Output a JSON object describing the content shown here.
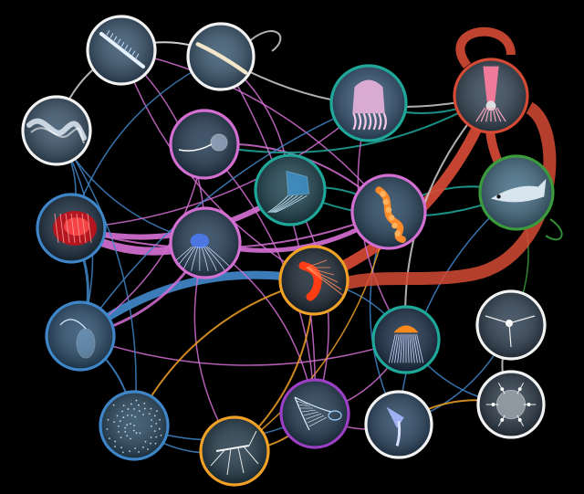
{
  "colors": {
    "background": "#000000",
    "white": "#f2f2f2",
    "blue": "#3f86c8",
    "pink": "#d46fd2",
    "teal": "#1fa79a",
    "orange": "#f0a126",
    "red": "#d54a35",
    "green": "#3a9a3c",
    "purple": "#9b3fc4",
    "grey": "#cfcfcf"
  },
  "nodes": [
    {
      "id": "arrow-worm",
      "ring": "white",
      "subject": "arrow-worm",
      "tone": "#2c4a66"
    },
    {
      "id": "larval-fish",
      "ring": "white",
      "subject": "larval-fish",
      "tone": "#2f4f6a"
    },
    {
      "id": "siphonophore-colony",
      "ring": "white",
      "subject": "siphonophore-colony",
      "tone": "#2e4a62"
    },
    {
      "id": "red-comb-jelly",
      "ring": "blue",
      "subject": "red-comb-jelly",
      "tone": "#102438"
    },
    {
      "id": "transparent-ctenophore",
      "ring": "blue",
      "subject": "transparent-ctenophore",
      "tone": "#1e4466"
    },
    {
      "id": "plankton-specks",
      "ring": "blue",
      "subject": "plankton-specks",
      "tone": "#1c3e58"
    },
    {
      "id": "trailing-hydromedusa",
      "ring": "pink",
      "subject": "trailing-hydromedusa",
      "tone": "#18304a"
    },
    {
      "id": "small-hydromedusa",
      "ring": "pink",
      "subject": "small-hydromedusa",
      "tone": "#1b3550"
    },
    {
      "id": "box-jellyfish",
      "ring": "teal",
      "subject": "box-jellyfish",
      "tone": "#123a48"
    },
    {
      "id": "pink-jellyfish",
      "ring": "teal",
      "subject": "pink-jellyfish",
      "tone": "#2a4d70"
    },
    {
      "id": "orange-siphonophore",
      "ring": "pink",
      "subject": "orange-siphonophore",
      "tone": "#1d3d5a"
    },
    {
      "id": "red-squid",
      "ring": "red",
      "subject": "red-squid",
      "tone": "#2a3c4e"
    },
    {
      "id": "silver-fish",
      "ring": "green",
      "subject": "silver-fish",
      "tone": "#3a6680"
    },
    {
      "id": "red-shrimp",
      "ring": "orange",
      "subject": "red-shrimp",
      "tone": "#0f1d2b"
    },
    {
      "id": "lace-medusa",
      "ring": "teal",
      "subject": "lace-medusa",
      "tone": "#0e2440"
    },
    {
      "id": "tentacled-larva",
      "ring": "white",
      "subject": "tentacled-larva",
      "tone": "#24364a"
    },
    {
      "id": "spider-amphipod",
      "ring": "orange",
      "subject": "spider-amphipod",
      "tone": "#163040"
    },
    {
      "id": "net-siphonophore",
      "ring": "purple",
      "subject": "net-siphonophore",
      "tone": "#16304a"
    },
    {
      "id": "sea-angel",
      "ring": "white",
      "subject": "sea-angel",
      "tone": "#1f3d5c"
    },
    {
      "id": "radiolarian",
      "ring": "white",
      "subject": "radiolarian",
      "tone": "#203040"
    }
  ],
  "edges": [
    {
      "from": "arrow-worm",
      "to": "larval-fish",
      "color": "white",
      "weight": 2
    },
    {
      "from": "arrow-worm",
      "to": "siphonophore-colony",
      "color": "grey",
      "weight": 2
    },
    {
      "from": "arrow-worm",
      "to": "small-hydromedusa",
      "color": "pink",
      "weight": 1.5
    },
    {
      "from": "arrow-worm",
      "to": "red-shrimp",
      "color": "pink",
      "weight": 1.5
    },
    {
      "from": "arrow-worm",
      "to": "orange-siphonophore",
      "color": "pink",
      "weight": 1.5
    },
    {
      "from": "larval-fish",
      "to": "red-squid",
      "color": "grey",
      "weight": 2
    },
    {
      "from": "larval-fish",
      "to": "box-jellyfish",
      "color": "pink",
      "weight": 1.5
    },
    {
      "from": "larval-fish",
      "to": "red-comb-jelly",
      "color": "blue",
      "weight": 1.5
    },
    {
      "from": "siphonophore-colony",
      "to": "red-comb-jelly",
      "color": "blue",
      "weight": 1.5
    },
    {
      "from": "siphonophore-colony",
      "to": "small-hydromedusa",
      "color": "blue",
      "weight": 1.5
    },
    {
      "from": "siphonophore-colony",
      "to": "transparent-ctenophore",
      "color": "blue",
      "weight": 1.5
    },
    {
      "from": "red-comb-jelly",
      "to": "small-hydromedusa",
      "color": "pink",
      "weight": 9
    },
    {
      "from": "red-comb-jelly",
      "to": "transparent-ctenophore",
      "color": "blue",
      "weight": 3
    },
    {
      "from": "red-comb-jelly",
      "to": "box-jellyfish",
      "color": "pink",
      "weight": 6
    },
    {
      "from": "transparent-ctenophore",
      "to": "red-shrimp",
      "color": "blue",
      "weight": 9
    },
    {
      "from": "transparent-ctenophore",
      "to": "small-hydromedusa",
      "color": "pink",
      "weight": 3
    },
    {
      "from": "transparent-ctenophore",
      "to": "plankton-specks",
      "color": "blue",
      "weight": 2
    },
    {
      "from": "transparent-ctenophore",
      "to": "lace-medusa",
      "color": "pink",
      "weight": 1.5
    },
    {
      "from": "trailing-hydromedusa",
      "to": "orange-siphonophore",
      "color": "pink",
      "weight": 2
    },
    {
      "from": "trailing-hydromedusa",
      "to": "red-squid",
      "color": "teal",
      "weight": 2
    },
    {
      "from": "trailing-hydromedusa",
      "to": "net-siphonophore",
      "color": "pink",
      "weight": 1.5
    },
    {
      "from": "small-hydromedusa",
      "to": "orange-siphonophore",
      "color": "pink",
      "weight": 5
    },
    {
      "from": "small-hydromedusa",
      "to": "net-siphonophore",
      "color": "pink",
      "weight": 1.5
    },
    {
      "from": "small-hydromedusa",
      "to": "spider-amphipod",
      "color": "pink",
      "weight": 1.5
    },
    {
      "from": "box-jellyfish",
      "to": "orange-siphonophore",
      "color": "teal",
      "weight": 2
    },
    {
      "from": "box-jellyfish",
      "to": "silver-fish",
      "color": "teal",
      "weight": 2
    },
    {
      "from": "box-jellyfish",
      "to": "net-siphonophore",
      "color": "pink",
      "weight": 1.5
    },
    {
      "from": "pink-jellyfish",
      "to": "red-squid",
      "color": "teal",
      "weight": 2
    },
    {
      "from": "pink-jellyfish",
      "to": "red-comb-jelly",
      "color": "pink",
      "weight": 1.5
    },
    {
      "from": "pink-jellyfish",
      "to": "transparent-ctenophore",
      "color": "blue",
      "weight": 1.5
    },
    {
      "from": "orange-siphonophore",
      "to": "silver-fish",
      "color": "teal",
      "weight": 2
    },
    {
      "from": "orange-siphonophore",
      "to": "sea-angel",
      "color": "blue",
      "weight": 1.5
    },
    {
      "from": "red-squid",
      "to": "red-shrimp",
      "color": "red",
      "weight": 12
    },
    {
      "from": "red-squid",
      "to": "silver-fish",
      "color": "red",
      "weight": 10
    },
    {
      "from": "silver-fish",
      "to": "tentacled-larva",
      "color": "green",
      "weight": 1.5
    },
    {
      "from": "silver-fish",
      "to": "sea-angel",
      "color": "blue",
      "weight": 1.5
    },
    {
      "from": "red-shrimp",
      "to": "spider-amphipod",
      "color": "orange",
      "weight": 2
    },
    {
      "from": "red-shrimp",
      "to": "plankton-specks",
      "color": "orange",
      "weight": 2
    },
    {
      "from": "red-shrimp",
      "to": "lace-medusa",
      "color": "blue",
      "weight": 1.5
    },
    {
      "from": "lace-medusa",
      "to": "radiolarian",
      "color": "blue",
      "weight": 1.5
    },
    {
      "from": "lace-medusa",
      "to": "net-siphonophore",
      "color": "pink",
      "weight": 1.5
    },
    {
      "from": "tentacled-larva",
      "to": "radiolarian",
      "color": "grey",
      "weight": 2
    },
    {
      "from": "tentacled-larva",
      "to": "sea-angel",
      "color": "blue",
      "weight": 1.5
    },
    {
      "from": "spider-amphipod",
      "to": "net-siphonophore",
      "color": "orange",
      "weight": 2
    },
    {
      "from": "spider-amphipod",
      "to": "plankton-specks",
      "color": "blue",
      "weight": 1.5
    },
    {
      "from": "net-siphonophore",
      "to": "sea-angel",
      "color": "pink",
      "weight": 1.5
    },
    {
      "from": "sea-angel",
      "to": "radiolarian",
      "color": "orange",
      "weight": 2
    },
    {
      "from": "plankton-specks",
      "to": "net-siphonophore",
      "color": "blue",
      "weight": 1.5
    },
    {
      "from": "siphonophore-colony",
      "to": "plankton-specks",
      "color": "blue",
      "weight": 1.5
    },
    {
      "from": "red-comb-jelly",
      "to": "orange-siphonophore",
      "color": "pink",
      "weight": 2
    },
    {
      "from": "trailing-hydromedusa",
      "to": "transparent-ctenophore",
      "color": "pink",
      "weight": 1.5
    },
    {
      "from": "pink-jellyfish",
      "to": "lace-medusa",
      "color": "pink",
      "weight": 1.5
    },
    {
      "from": "orange-siphonophore",
      "to": "spider-amphipod",
      "color": "orange",
      "weight": 1.5
    },
    {
      "from": "red-squid",
      "to": "lace-medusa",
      "color": "grey",
      "weight": 2
    },
    {
      "from": "larval-fish",
      "to": "net-siphonophore",
      "color": "pink",
      "weight": 1.5
    }
  ]
}
